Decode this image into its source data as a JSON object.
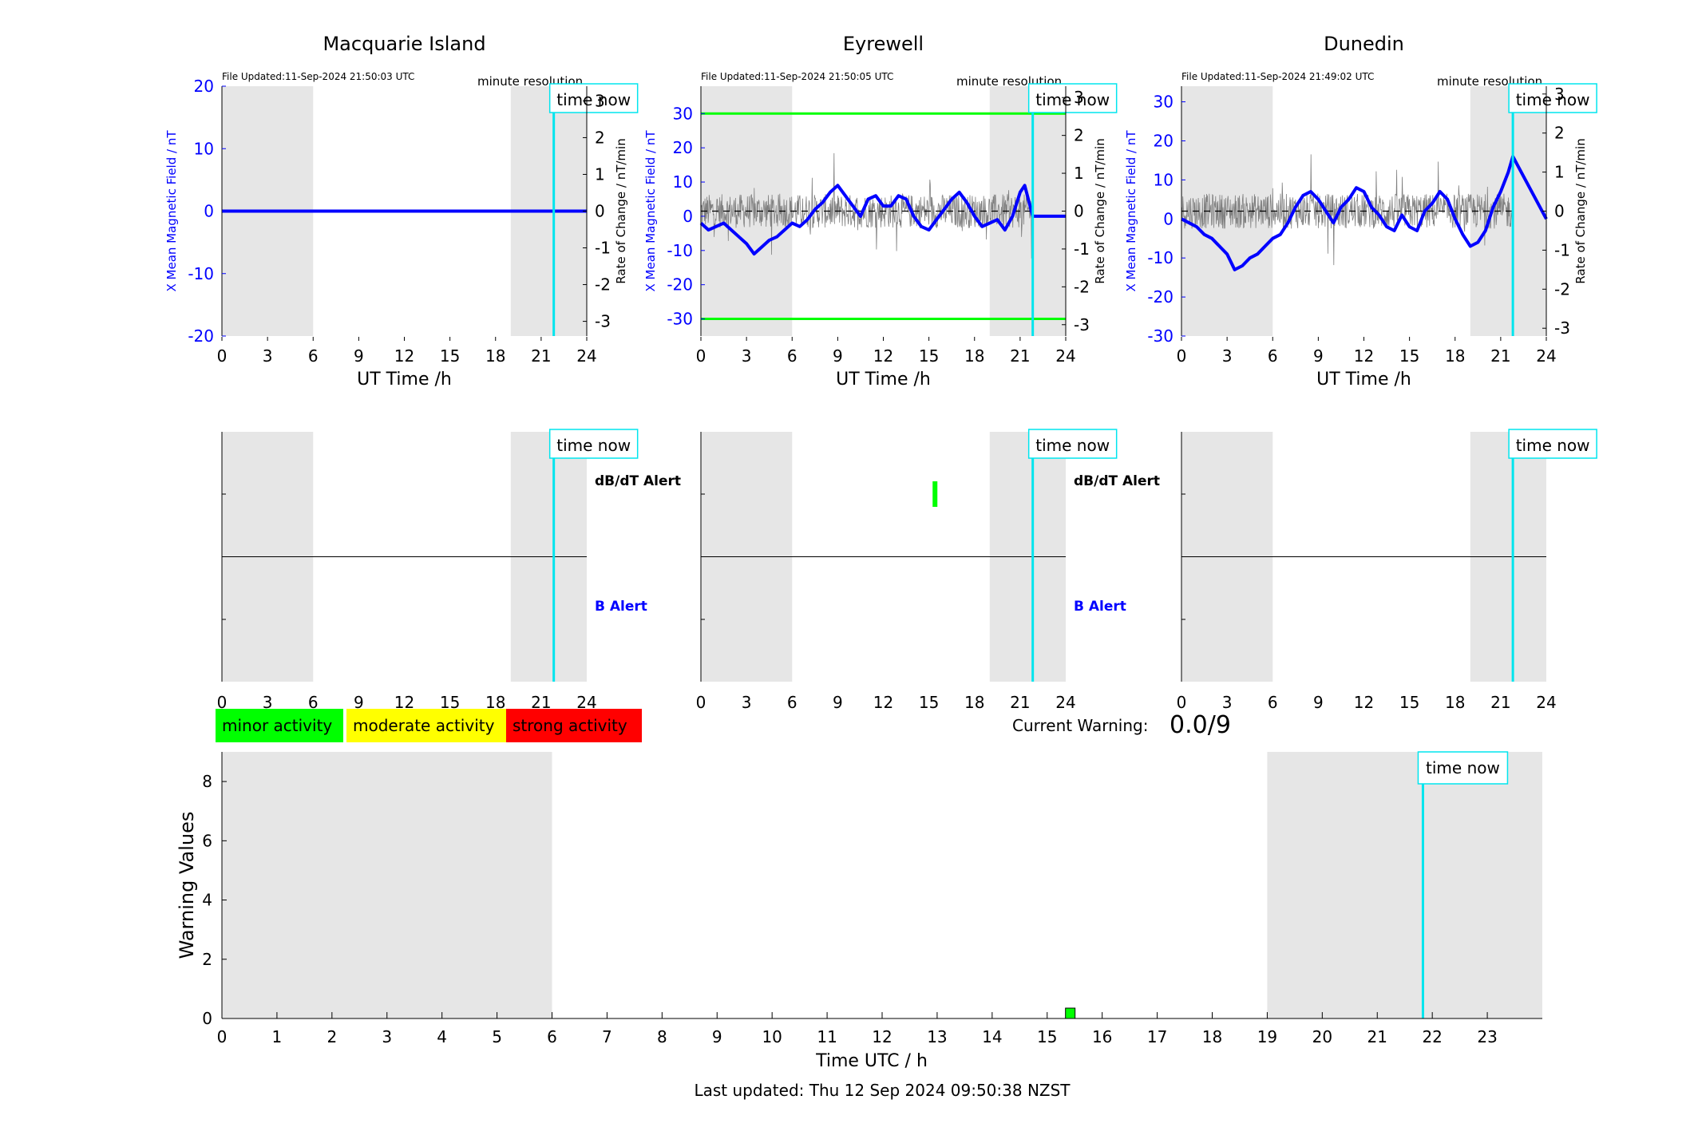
{
  "page": {
    "last_updated": "Last updated: Thu 12 Sep 2024 09:50:38 NZST"
  },
  "labels": {
    "time_now": "time now",
    "minute_resolution": "minute resolution",
    "ut_xlabel": "UT Time /h",
    "left_ylabel": "X Mean Magnetic Field / nT",
    "right_ylabel": "Rate of Change / nT/min",
    "dbdt_alert": "dB/dT Alert",
    "b_alert": "B Alert",
    "current_warning_label": "Current Warning:",
    "current_warning_value": "0.0/9"
  },
  "legend": [
    {
      "label": "minor activity",
      "color": "#00ff00"
    },
    {
      "label": "moderate activity",
      "color": "#ffff00"
    },
    {
      "label": "strong activity",
      "color": "#ff0000"
    }
  ],
  "colors": {
    "field_line": "#0000ff",
    "rate_line": "#808080",
    "shade": "#e6e6e6",
    "time_now": "#00e5ee",
    "threshold": "#00ff00",
    "alert": "#00ff00"
  },
  "stations": [
    {
      "name": "Macquarie Island",
      "file_updated": "File Updated:11-Sep-2024 21:50:03 UTC",
      "ylim": [
        -20,
        20
      ],
      "yticks": [
        -20,
        -10,
        0,
        10,
        20
      ],
      "thresholds": [],
      "has_alert_labels": true
    },
    {
      "name": "Eyrewell",
      "file_updated": "File Updated:11-Sep-2024 21:50:05 UTC",
      "ylim": [
        -35,
        38
      ],
      "yticks": [
        -30,
        -20,
        -10,
        0,
        10,
        20,
        30
      ],
      "thresholds": [
        30,
        -30
      ],
      "has_alert_labels": true
    },
    {
      "name": "Dunedin",
      "file_updated": "File Updated:11-Sep-2024 21:49:02 UTC",
      "ylim": [
        -30,
        34
      ],
      "yticks": [
        -30,
        -20,
        -10,
        0,
        10,
        20,
        30
      ],
      "thresholds": [],
      "has_alert_labels": false
    }
  ],
  "chart_data": [
    {
      "type": "line",
      "title": "Macquarie Island",
      "xlabel": "UT Time /h",
      "ylabel": "X Mean Magnetic Field / nT",
      "y2label": "Rate of Change / nT/min",
      "xlim": [
        0,
        24
      ],
      "ylim": [
        -20,
        20
      ],
      "y2lim": [
        -3.4,
        3.4
      ],
      "xticks": [
        0,
        3,
        6,
        9,
        12,
        15,
        18,
        21,
        24
      ],
      "y2ticks": [
        -3,
        -2,
        -1,
        0,
        1,
        2,
        3
      ],
      "shaded_hours": [
        [
          0,
          6
        ],
        [
          19,
          24
        ]
      ],
      "time_now": 21.83,
      "series": [
        {
          "values_x": [
            0,
            21.83,
            24
          ],
          "values_y": [
            0,
            0,
            0
          ]
        }
      ]
    },
    {
      "type": "line",
      "title": "Eyrewell",
      "xlabel": "UT Time /h",
      "ylabel": "X Mean Magnetic Field / nT",
      "y2label": "Rate of Change / nT/min",
      "xlim": [
        0,
        24
      ],
      "ylim": [
        -35,
        38
      ],
      "y2lim": [
        -3.3,
        3.3
      ],
      "xticks": [
        0,
        3,
        6,
        9,
        12,
        15,
        18,
        21,
        24
      ],
      "y2ticks": [
        -3,
        -2,
        -1,
        0,
        1,
        2,
        3
      ],
      "shaded_hours": [
        [
          0,
          6
        ],
        [
          19,
          24
        ]
      ],
      "time_now": 21.83,
      "thresholds": [
        30,
        -30
      ],
      "series": [
        {
          "values_x": [
            0,
            0.5,
            1,
            1.5,
            2,
            2.5,
            3,
            3.5,
            4,
            4.5,
            5,
            5.5,
            6,
            6.5,
            7,
            7.5,
            8,
            8.5,
            9,
            9.5,
            10,
            10.5,
            11,
            11.5,
            12,
            12.5,
            13,
            13.5,
            14,
            14.5,
            15,
            15.5,
            16,
            16.5,
            17,
            17.5,
            18,
            18.5,
            19,
            19.5,
            20,
            20.5,
            21,
            21.3,
            21.83,
            24
          ],
          "values_y": [
            -2,
            -4,
            -3,
            -2,
            -4,
            -6,
            -8,
            -11,
            -9,
            -7,
            -6,
            -4,
            -2,
            -3,
            -1,
            2,
            4,
            7,
            9,
            6,
            3,
            0,
            5,
            6,
            3,
            3,
            6,
            5,
            0,
            -3,
            -4,
            -1,
            2,
            5,
            7,
            4,
            0,
            -3,
            -2,
            -1,
            -4,
            0,
            7,
            9,
            0,
            0
          ]
        }
      ]
    },
    {
      "type": "line",
      "title": "Dunedin",
      "xlabel": "UT Time /h",
      "ylabel": "X Mean Magnetic Field / nT",
      "y2label": "Rate of Change / nT/min",
      "xlim": [
        0,
        24
      ],
      "ylim": [
        -30,
        34
      ],
      "y2lim": [
        -3.2,
        3.2
      ],
      "xticks": [
        0,
        3,
        6,
        9,
        12,
        15,
        18,
        21,
        24
      ],
      "y2ticks": [
        -3,
        -2,
        -1,
        0,
        1,
        2,
        3
      ],
      "shaded_hours": [
        [
          0,
          6
        ],
        [
          19,
          24
        ]
      ],
      "time_now": 21.8,
      "series": [
        {
          "values_x": [
            0,
            0.5,
            1,
            1.5,
            2,
            2.5,
            3,
            3.5,
            4,
            4.5,
            5,
            5.5,
            6,
            6.5,
            7,
            7.5,
            8,
            8.5,
            9,
            9.5,
            10,
            10.5,
            11,
            11.5,
            12,
            12.5,
            13,
            13.5,
            14,
            14.5,
            15,
            15.5,
            16,
            16.5,
            17,
            17.5,
            18,
            18.5,
            19,
            19.5,
            20,
            20.5,
            21,
            21.5,
            21.8,
            24
          ],
          "values_y": [
            0,
            -1,
            -2,
            -4,
            -5,
            -7,
            -9,
            -13,
            -12,
            -10,
            -9,
            -7,
            -5,
            -4,
            -1,
            3,
            6,
            7,
            5,
            2,
            -1,
            3,
            5,
            8,
            7,
            3,
            1,
            -2,
            -3,
            1,
            -2,
            -3,
            2,
            4,
            7,
            5,
            0,
            -4,
            -7,
            -6,
            -3,
            3,
            7,
            12,
            16,
            0
          ]
        }
      ]
    },
    {
      "type": "bar",
      "title": "",
      "xlabel": "Time UTC / h",
      "ylabel": "Warning Values",
      "xlim": [
        0,
        24
      ],
      "ylim": [
        0,
        9
      ],
      "xticks": [
        0,
        1,
        2,
        3,
        4,
        5,
        6,
        7,
        8,
        9,
        10,
        11,
        12,
        13,
        14,
        15,
        16,
        17,
        18,
        19,
        20,
        21,
        22,
        23
      ],
      "yticks": [
        0,
        2,
        4,
        6,
        8
      ],
      "shaded_hours": [
        [
          0,
          6
        ],
        [
          19,
          24
        ]
      ],
      "time_now": 21.83,
      "bars": [
        {
          "x": 15.42,
          "value": 0.35,
          "color": "#00ff00"
        }
      ]
    }
  ],
  "alerts": [
    {
      "station": "Eyrewell",
      "type": "dB/dT",
      "hour": 15.4
    }
  ]
}
